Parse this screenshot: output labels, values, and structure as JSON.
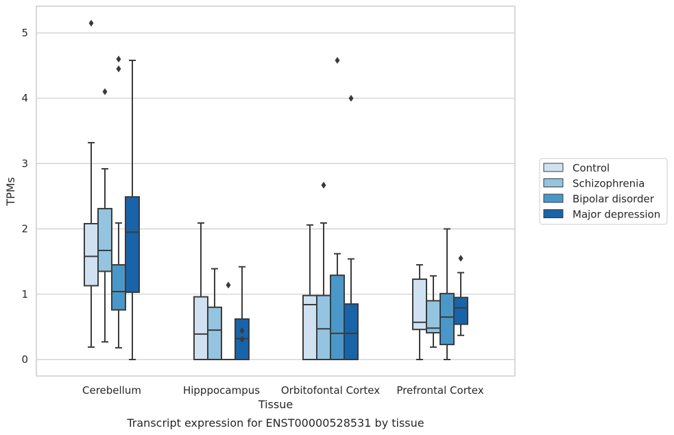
{
  "chart_data": {
    "type": "box",
    "caption": "Transcript expression for ENST00000528531 by tissue",
    "xlabel": "Tissue",
    "ylabel": "TPMs",
    "ylim": [
      -0.25,
      5.4
    ],
    "yticks": [
      0,
      1,
      2,
      3,
      4,
      5
    ],
    "grid": "horizontal",
    "legend_position": "right",
    "categories": [
      "Cerebellum",
      "Hipppocampus",
      "Orbitofontal Cortex",
      "Prefrontal Cortex"
    ],
    "series": [
      {
        "name": "Control",
        "color": "#d0e1f2",
        "boxes": [
          {
            "q1": 1.13,
            "median": 1.58,
            "q3": 2.08,
            "whisker_low": 0.19,
            "whisker_high": 3.32,
            "outliers": [
              5.15
            ]
          },
          {
            "q1": 0.0,
            "median": 0.39,
            "q3": 0.96,
            "whisker_low": 0.0,
            "whisker_high": 2.09,
            "outliers": []
          },
          {
            "q1": 0.0,
            "median": 0.84,
            "q3": 0.98,
            "whisker_low": 0.0,
            "whisker_high": 2.06,
            "outliers": []
          },
          {
            "q1": 0.46,
            "median": 0.57,
            "q3": 1.23,
            "whisker_low": 0.0,
            "whisker_high": 1.45,
            "outliers": []
          }
        ]
      },
      {
        "name": "Schizophrenia",
        "color": "#94c4df",
        "boxes": [
          {
            "q1": 1.35,
            "median": 1.67,
            "q3": 2.31,
            "whisker_low": 0.27,
            "whisker_high": 2.92,
            "outliers": [
              4.1
            ]
          },
          {
            "q1": 0.0,
            "median": 0.45,
            "q3": 0.8,
            "whisker_low": 0.0,
            "whisker_high": 1.39,
            "outliers": []
          },
          {
            "q1": 0.0,
            "median": 0.47,
            "q3": 0.98,
            "whisker_low": 0.0,
            "whisker_high": 2.09,
            "outliers": [
              2.67
            ]
          },
          {
            "q1": 0.41,
            "median": 0.48,
            "q3": 0.9,
            "whisker_low": 0.19,
            "whisker_high": 1.28,
            "outliers": []
          }
        ]
      },
      {
        "name": "Bipolar disorder",
        "color": "#4a98c9",
        "boxes": [
          {
            "q1": 0.76,
            "median": 1.04,
            "q3": 1.45,
            "whisker_low": 0.18,
            "whisker_high": 2.09,
            "outliers": [
              4.45,
              4.6
            ]
          },
          {
            "q1": 0.0,
            "median": 0.0,
            "q3": 0.0,
            "whisker_low": 0.0,
            "whisker_high": 0.0,
            "outliers": [
              1.14
            ]
          },
          {
            "q1": 0.0,
            "median": 0.4,
            "q3": 1.29,
            "whisker_low": 0.0,
            "whisker_high": 1.62,
            "outliers": [
              4.58
            ]
          },
          {
            "q1": 0.23,
            "median": 0.65,
            "q3": 1.01,
            "whisker_low": 0.0,
            "whisker_high": 2.0,
            "outliers": []
          }
        ]
      },
      {
        "name": "Major depression",
        "color": "#1764ab",
        "boxes": [
          {
            "q1": 1.03,
            "median": 1.95,
            "q3": 2.49,
            "whisker_low": 0.0,
            "whisker_high": 4.58,
            "outliers": []
          },
          {
            "q1": 0.0,
            "median": 0.32,
            "q3": 0.62,
            "whisker_low": 0.0,
            "whisker_high": 1.42,
            "outliers": [
              0.31,
              0.44
            ]
          },
          {
            "q1": 0.0,
            "median": 0.4,
            "q3": 0.85,
            "whisker_low": 0.0,
            "whisker_high": 1.54,
            "outliers": [
              4.0
            ]
          },
          {
            "q1": 0.54,
            "median": 0.79,
            "q3": 0.95,
            "whisker_low": 0.37,
            "whisker_high": 1.33,
            "outliers": [
              1.55
            ]
          }
        ]
      }
    ]
  }
}
